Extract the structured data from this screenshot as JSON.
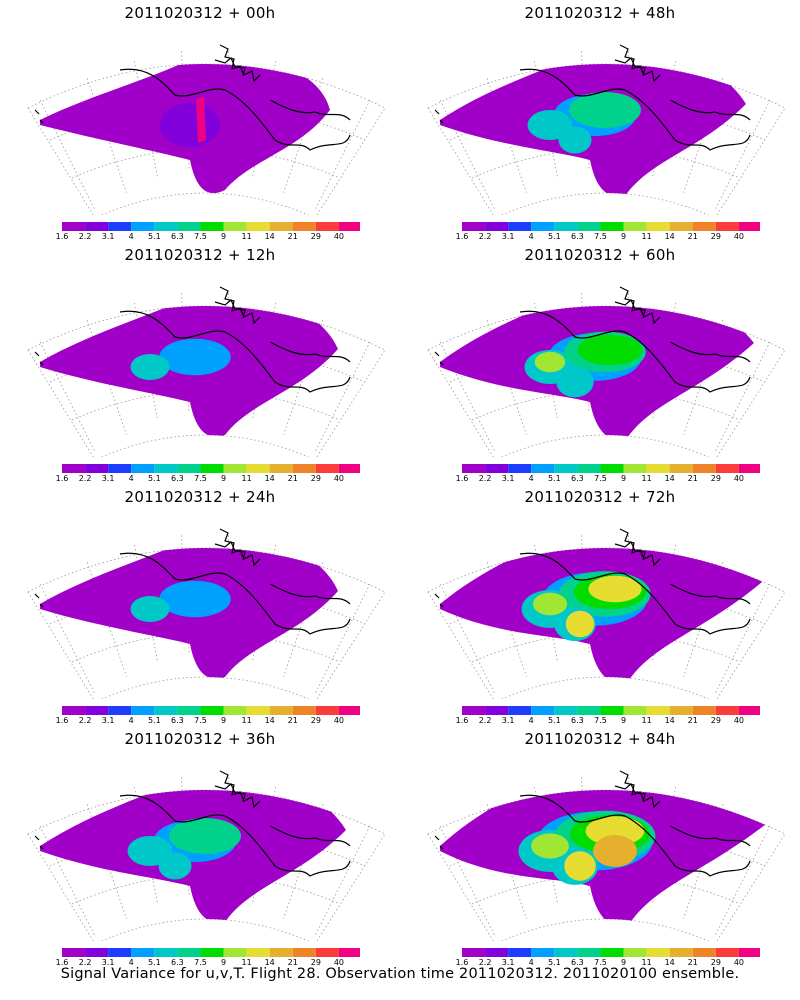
{
  "footer": "Signal Variance for u,v,T. Flight 28. Observation time 2011020312. 2011020100 ensemble.",
  "colorbar": {
    "colors": [
      "#a000c8",
      "#8200dc",
      "#1e3cff",
      "#00a0ff",
      "#00c8c8",
      "#00d28c",
      "#00dc00",
      "#a0e632",
      "#e6dc32",
      "#e6af2d",
      "#f08228",
      "#fa3c3c",
      "#f00082"
    ],
    "labels": [
      "1.6",
      "2.2",
      "3.1",
      "4",
      "5.1",
      "6.3",
      "7.5",
      "9",
      "11",
      "14",
      "21",
      "29",
      "40"
    ]
  },
  "panels": [
    {
      "title": "2011020312 + 00h"
    },
    {
      "title": "2011020312 + 48h"
    },
    {
      "title": "2011020312 + 12h"
    },
    {
      "title": "2011020312 + 60h"
    },
    {
      "title": "2011020312 + 24h"
    },
    {
      "title": "2011020312 + 72h"
    },
    {
      "title": "2011020312 + 36h"
    },
    {
      "title": "2011020312 + 84h"
    }
  ]
}
